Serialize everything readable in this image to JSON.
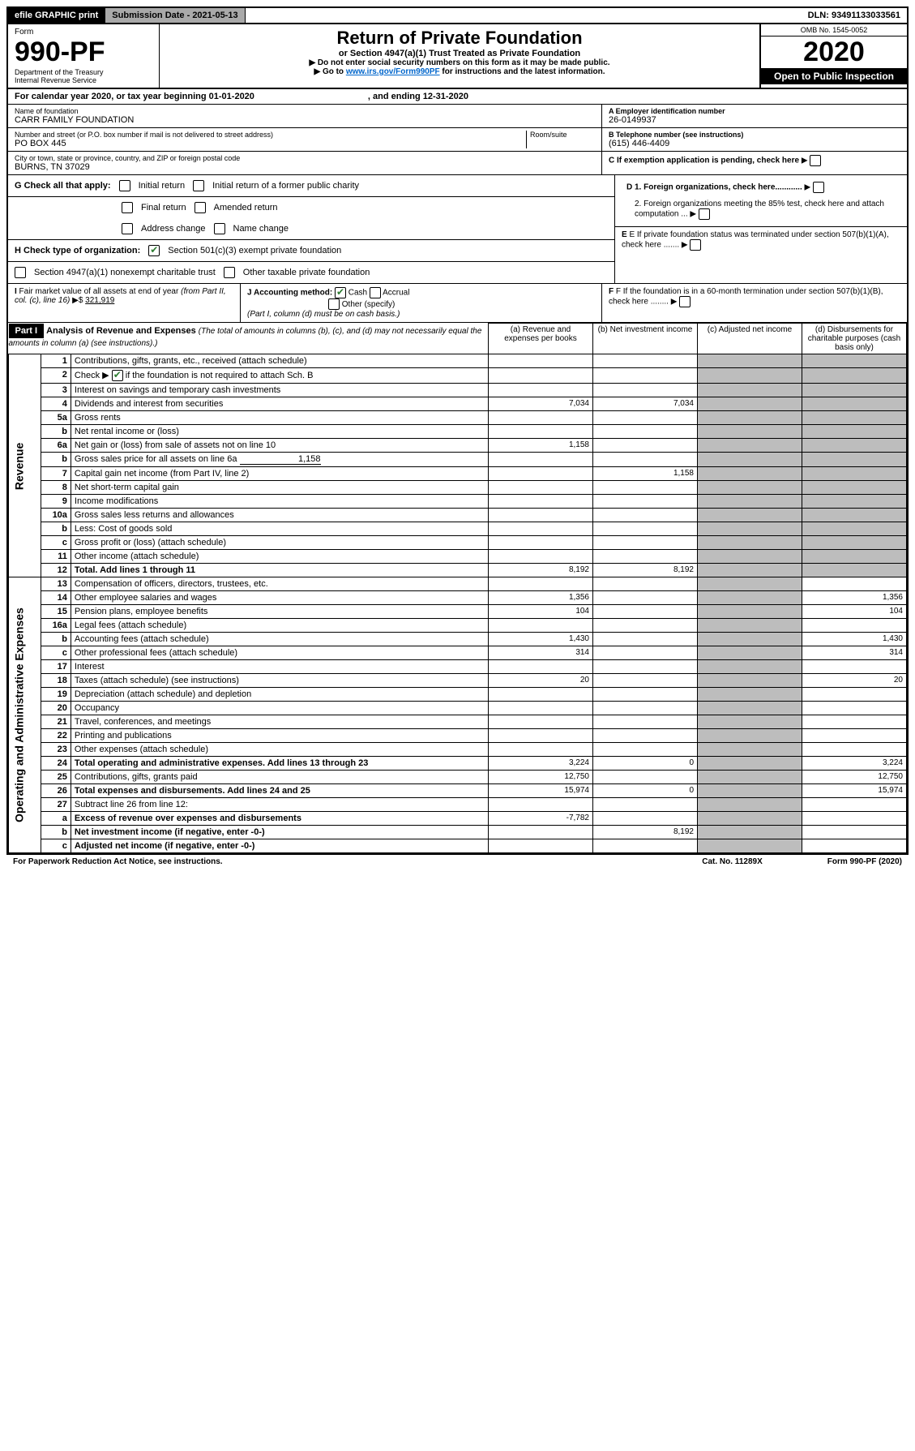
{
  "topbar": {
    "efile": "efile GRAPHIC print",
    "submission": "Submission Date - 2021-05-13",
    "dln": "DLN: 93491133033561"
  },
  "header": {
    "form": "Form",
    "formnum": "990-PF",
    "dept": "Department of the Treasury",
    "irs": "Internal Revenue Service",
    "title": "Return of Private Foundation",
    "subtitle": "or Section 4947(a)(1) Trust Treated as Private Foundation",
    "note1": "▶ Do not enter social security numbers on this form as it may be made public.",
    "note2": "▶ Go to ",
    "note2link": "www.irs.gov/Form990PF",
    "note2b": " for instructions and the latest information.",
    "omb": "OMB No. 1545-0052",
    "year": "2020",
    "open": "Open to Public Inspection"
  },
  "calyear": {
    "a": "For calendar year 2020, or tax year beginning 01-01-2020",
    "b": ", and ending 12-31-2020"
  },
  "name": {
    "label": "Name of foundation",
    "value": "CARR FAMILY FOUNDATION"
  },
  "ein": {
    "label": "A Employer identification number",
    "value": "26-0149937"
  },
  "addr": {
    "label": "Number and street (or P.O. box number if mail is not delivered to street address)",
    "room": "Room/suite",
    "value": "PO BOX 445"
  },
  "tel": {
    "label": "B Telephone number (see instructions)",
    "value": "(615) 446-4409"
  },
  "city": {
    "label": "City or town, state or province, country, and ZIP or foreign postal code",
    "value": "BURNS, TN  37029"
  },
  "c": {
    "label": "C If exemption application is pending, check here"
  },
  "g": {
    "label": "G Check all that apply:",
    "o1": "Initial return",
    "o2": "Initial return of a former public charity",
    "o3": "Final return",
    "o4": "Amended return",
    "o5": "Address change",
    "o6": "Name change"
  },
  "d": {
    "d1": "D 1. Foreign organizations, check here............",
    "d2": "2. Foreign organizations meeting the 85% test, check here and attach computation ..."
  },
  "h": {
    "label": "H Check type of organization:",
    "o1": "Section 501(c)(3) exempt private foundation",
    "o2": "Section 4947(a)(1) nonexempt charitable trust",
    "o3": "Other taxable private foundation"
  },
  "e": {
    "label": "E  If private foundation status was terminated under section 507(b)(1)(A), check here ......."
  },
  "i": {
    "label": "I Fair market value of all assets at end of year (from Part II, col. (c), line 16) ▶$ ",
    "value": "321,919"
  },
  "j": {
    "label": "J Accounting method:",
    "o1": "Cash",
    "o2": "Accrual",
    "o3": "Other (specify)",
    "note": "(Part I, column (d) must be on cash basis.)"
  },
  "f": {
    "label": "F  If the foundation is in a 60-month termination under section 507(b)(1)(B), check here ........"
  },
  "part1": {
    "label": "Part I",
    "title": "Analysis of Revenue and Expenses",
    "note": "(The total of amounts in columns (b), (c), and (d) may not necessarily equal the amounts in column (a) (see instructions).)",
    "cols": {
      "a": "(a)  Revenue and expenses per books",
      "b": "(b)  Net investment income",
      "c": "(c)  Adjusted net income",
      "d": "(d)  Disbursements for charitable purposes (cash basis only)"
    }
  },
  "rev_label": "Revenue",
  "exp_label": "Operating and Administrative Expenses",
  "rows": [
    {
      "n": "1",
      "d": "Contributions, gifts, grants, etc., received (attach schedule)"
    },
    {
      "n": "2",
      "d": "Check ▶ ",
      "d2": " if the foundation is not required to attach Sch. B",
      "check": true
    },
    {
      "n": "3",
      "d": "Interest on savings and temporary cash investments"
    },
    {
      "n": "4",
      "d": "Dividends and interest from securities",
      "a": "7,034",
      "b": "7,034"
    },
    {
      "n": "5a",
      "d": "Gross rents"
    },
    {
      "n": "b",
      "d": "Net rental income or (loss)"
    },
    {
      "n": "6a",
      "d": "Net gain or (loss) from sale of assets not on line 10",
      "a": "1,158"
    },
    {
      "n": "b",
      "d": "Gross sales price for all assets on line 6a",
      "inline": "1,158"
    },
    {
      "n": "7",
      "d": "Capital gain net income (from Part IV, line 2)",
      "b": "1,158"
    },
    {
      "n": "8",
      "d": "Net short-term capital gain"
    },
    {
      "n": "9",
      "d": "Income modifications"
    },
    {
      "n": "10a",
      "d": "Gross sales less returns and allowances"
    },
    {
      "n": "b",
      "d": "Less: Cost of goods sold"
    },
    {
      "n": "c",
      "d": "Gross profit or (loss) (attach schedule)"
    },
    {
      "n": "11",
      "d": "Other income (attach schedule)"
    },
    {
      "n": "12",
      "d": "Total. Add lines 1 through 11",
      "bold": true,
      "a": "8,192",
      "b": "8,192"
    },
    {
      "n": "13",
      "d": "Compensation of officers, directors, trustees, etc."
    },
    {
      "n": "14",
      "d": "Other employee salaries and wages",
      "a": "1,356",
      "dd": "1,356"
    },
    {
      "n": "15",
      "d": "Pension plans, employee benefits",
      "a": "104",
      "dd": "104"
    },
    {
      "n": "16a",
      "d": "Legal fees (attach schedule)"
    },
    {
      "n": "b",
      "d": "Accounting fees (attach schedule)",
      "a": "1,430",
      "dd": "1,430"
    },
    {
      "n": "c",
      "d": "Other professional fees (attach schedule)",
      "a": "314",
      "dd": "314"
    },
    {
      "n": "17",
      "d": "Interest"
    },
    {
      "n": "18",
      "d": "Taxes (attach schedule) (see instructions)",
      "a": "20",
      "dd": "20"
    },
    {
      "n": "19",
      "d": "Depreciation (attach schedule) and depletion"
    },
    {
      "n": "20",
      "d": "Occupancy"
    },
    {
      "n": "21",
      "d": "Travel, conferences, and meetings"
    },
    {
      "n": "22",
      "d": "Printing and publications"
    },
    {
      "n": "23",
      "d": "Other expenses (attach schedule)"
    },
    {
      "n": "24",
      "d": "Total operating and administrative expenses. Add lines 13 through 23",
      "bold": true,
      "a": "3,224",
      "b": "0",
      "dd": "3,224"
    },
    {
      "n": "25",
      "d": "Contributions, gifts, grants paid",
      "a": "12,750",
      "dd": "12,750"
    },
    {
      "n": "26",
      "d": "Total expenses and disbursements. Add lines 24 and 25",
      "bold": true,
      "a": "15,974",
      "b": "0",
      "dd": "15,974"
    },
    {
      "n": "27",
      "d": "Subtract line 26 from line 12:"
    },
    {
      "n": "a",
      "d": "Excess of revenue over expenses and disbursements",
      "bold": true,
      "a": "-7,782"
    },
    {
      "n": "b",
      "d": "Net investment income (if negative, enter -0-)",
      "bold": true,
      "b": "8,192"
    },
    {
      "n": "c",
      "d": "Adjusted net income (if negative, enter -0-)",
      "bold": true
    }
  ],
  "footer": {
    "a": "For Paperwork Reduction Act Notice, see instructions.",
    "b": "Cat. No. 11289X",
    "c": "Form 990-PF (2020)"
  }
}
